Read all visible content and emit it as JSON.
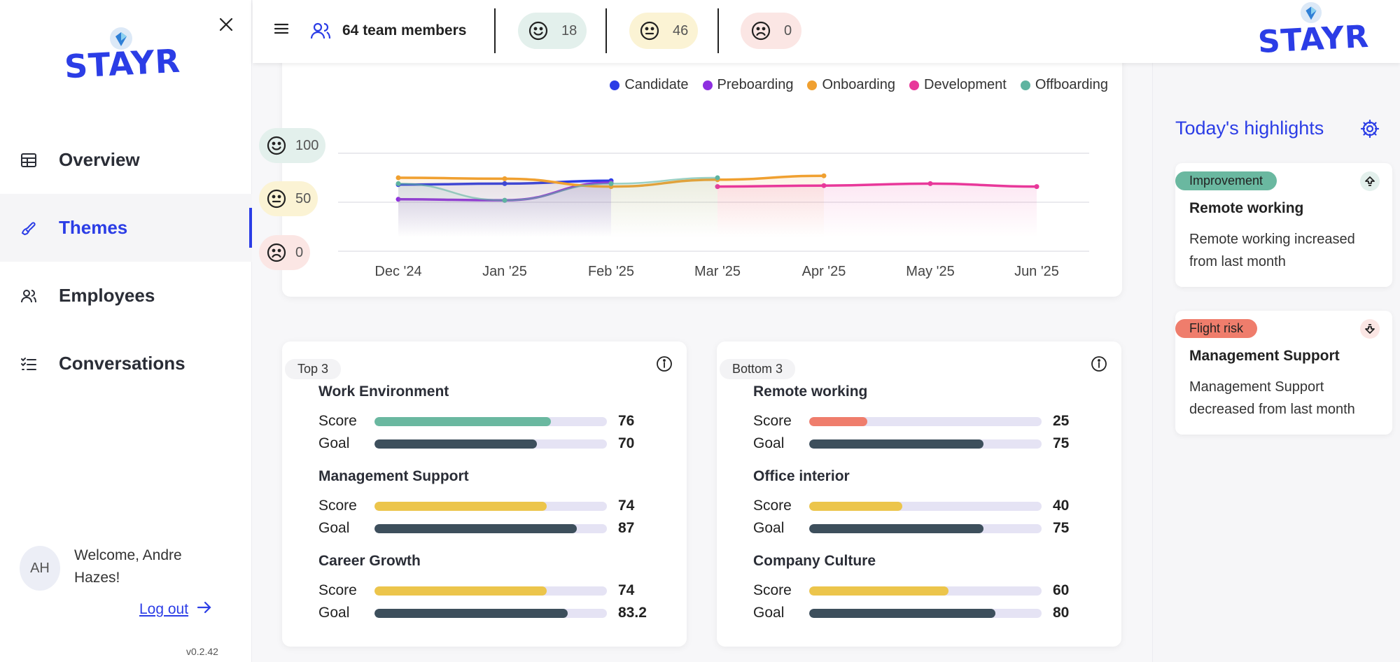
{
  "brand": {
    "logo_text": "STAYR",
    "accent": "#2b3de6"
  },
  "sidebar": {
    "close_icon": "close-icon",
    "nav": [
      {
        "label": "Overview",
        "icon": "table-icon",
        "active": false
      },
      {
        "label": "Themes",
        "icon": "themes-icon",
        "active": true
      },
      {
        "label": "Employees",
        "icon": "users-icon",
        "active": false
      },
      {
        "label": "Conversations",
        "icon": "checklist-icon",
        "active": false
      }
    ],
    "user": {
      "initials": "AH",
      "welcome": "Welcome, Andre Hazes!"
    },
    "logout": "Log out",
    "version": "v0.2.42"
  },
  "topbar": {
    "team_label": "64 team members",
    "moods": [
      {
        "icon": "happy-face-icon",
        "count": "18",
        "color": "#e3f0ec"
      },
      {
        "icon": "neutral-face-icon",
        "count": "46",
        "color": "#fbf3d4"
      },
      {
        "icon": "sad-face-icon",
        "count": "0",
        "color": "#fbe6e4"
      }
    ]
  },
  "chart_data": {
    "type": "line",
    "categories": [
      "Dec '24",
      "Jan '25",
      "Feb '25",
      "Mar '25",
      "Apr '25",
      "May '25",
      "Jun '25"
    ],
    "ylim": [
      0,
      100
    ],
    "y_badges": [
      {
        "value": "100",
        "icon": "happy-face-icon",
        "color": "#e3f0ec"
      },
      {
        "value": "50",
        "icon": "neutral-face-icon",
        "color": "#fbf3d4"
      },
      {
        "value": "0",
        "icon": "sad-face-icon",
        "color": "#fbe6e4"
      }
    ],
    "grid": true,
    "legend_position": "top-right",
    "series": [
      {
        "name": "Candidate",
        "color": "#2b3de6",
        "values": [
          68,
          69,
          72,
          null,
          null,
          null,
          null
        ]
      },
      {
        "name": "Preboarding",
        "color": "#8e2fe0",
        "values": [
          53,
          52,
          70,
          null,
          null,
          null,
          null
        ]
      },
      {
        "name": "Onboarding",
        "color": "#f0a030",
        "values": [
          75,
          74,
          66,
          73,
          77,
          null,
          null
        ]
      },
      {
        "name": "Development",
        "color": "#e8389a",
        "values": [
          null,
          null,
          null,
          66,
          67,
          69,
          66
        ]
      },
      {
        "name": "Offboarding",
        "color": "#5fb4a0",
        "values": [
          69,
          52,
          69,
          75,
          null,
          null,
          null
        ]
      }
    ]
  },
  "top3": {
    "tag": "Top 3",
    "items": [
      {
        "title": "Work Environment",
        "score": 76,
        "goal": 70,
        "score_label": "76",
        "goal_label": "70",
        "score_color": "#6ab8a0"
      },
      {
        "title": "Management Support",
        "score": 74,
        "goal": 87,
        "score_label": "74",
        "goal_label": "87",
        "score_color": "#ecc54b"
      },
      {
        "title": "Career Growth",
        "score": 74,
        "goal": 83.2,
        "score_label": "74",
        "goal_label": "83.2",
        "score_color": "#ecc54b"
      }
    ]
  },
  "bottom3": {
    "tag": "Bottom 3",
    "items": [
      {
        "title": "Remote working",
        "score": 25,
        "goal": 75,
        "score_label": "25",
        "goal_label": "75",
        "score_color": "#ef7d6c"
      },
      {
        "title": "Office interior",
        "score": 40,
        "goal": 75,
        "score_label": "40",
        "goal_label": "75",
        "score_color": "#ecc54b"
      },
      {
        "title": "Company Culture",
        "score": 60,
        "goal": 80,
        "score_label": "60",
        "goal_label": "80",
        "score_color": "#ecc54b"
      }
    ]
  },
  "labels": {
    "score": "Score",
    "goal": "Goal"
  },
  "highlights": {
    "title": "Today's highlights",
    "cards": [
      {
        "badge": "Improvement",
        "badge_color": "#6ab8a0",
        "icon": "arrow-up-icon",
        "name": "Remote working",
        "desc": "Remote working increased from last month"
      },
      {
        "badge": "Flight risk",
        "badge_color": "#ef7d6c",
        "icon": "arrow-down-icon",
        "name": "Management Support",
        "desc": "Management Support decreased from last month"
      }
    ]
  }
}
